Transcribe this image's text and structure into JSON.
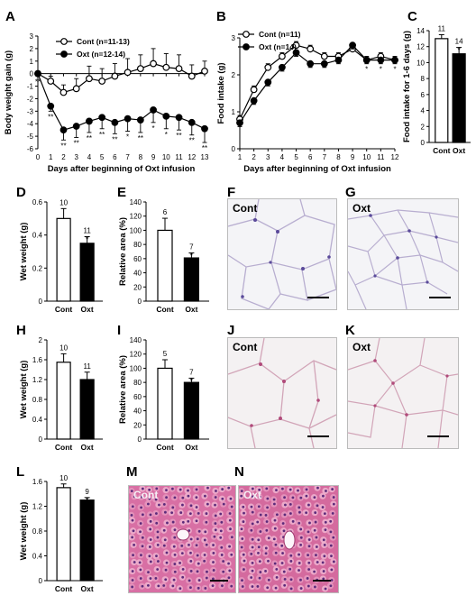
{
  "panels": {
    "A": {
      "label": "A",
      "ylabel": "Body weight gain (g)",
      "xlabel": "Days after beginning of Oxt infusion",
      "legend": [
        "Cont (n=11-13)",
        "Oxt (n=12-14)"
      ]
    },
    "B": {
      "label": "B",
      "ylabel": "Food intake (g)",
      "xlabel": "Days after beginning of Oxt infusion",
      "legend": [
        "Cont (n=11)",
        "Oxt (n=14)"
      ]
    },
    "C": {
      "label": "C",
      "ylabel": "Food intake for 1-6 days (g)"
    },
    "D": {
      "label": "D",
      "ylabel": "Wet weight (g)"
    },
    "E": {
      "label": "E",
      "ylabel": "Relative area (%)"
    },
    "F": {
      "label": "F",
      "caption": "Cont"
    },
    "G": {
      "label": "G",
      "caption": "Oxt"
    },
    "H": {
      "label": "H",
      "ylabel": "Wet weight (g)"
    },
    "I": {
      "label": "I",
      "ylabel": "Relative area (%)"
    },
    "J": {
      "label": "J",
      "caption": "Cont"
    },
    "K": {
      "label": "K",
      "caption": "Oxt"
    },
    "L": {
      "label": "L",
      "ylabel": "Wet weight (g)"
    },
    "M": {
      "label": "M",
      "caption": "Cont"
    },
    "N": {
      "label": "N",
      "caption": "Oxt"
    }
  },
  "chart_data": [
    {
      "id": "A",
      "type": "line",
      "x": [
        0,
        1,
        2,
        3,
        4,
        5,
        6,
        7,
        8,
        9,
        10,
        11,
        12,
        13
      ],
      "xlabel": "Days after beginning of Oxt infusion",
      "ylabel": "Body weight gain (g)",
      "ylim": [
        -6,
        3
      ],
      "yticks": [
        -6,
        -5,
        -4,
        -3,
        -2,
        -1,
        0,
        1,
        2,
        3
      ],
      "series": [
        {
          "name": "Cont (n=11-13)",
          "marker": "open",
          "values": [
            0,
            -0.6,
            -1.5,
            -1.2,
            -0.4,
            -0.6,
            -0.2,
            0.1,
            0.4,
            0.8,
            0.5,
            0.4,
            -0.2,
            0.2
          ],
          "err": [
            0.2,
            0.4,
            0.6,
            0.8,
            1.0,
            1.0,
            1.0,
            1.1,
            1.1,
            1.2,
            1.1,
            1.1,
            0.9,
            0.8
          ]
        },
        {
          "name": "Oxt (n=12-14)",
          "marker": "filled",
          "values": [
            0,
            -2.6,
            -4.5,
            -4.2,
            -3.8,
            -3.5,
            -3.9,
            -3.6,
            -3.7,
            -2.9,
            -3.4,
            -3.5,
            -3.9,
            -4.4
          ],
          "err": [
            0.2,
            0.4,
            0.8,
            0.9,
            0.9,
            0.9,
            0.9,
            1.0,
            1.0,
            1.0,
            1.0,
            1.0,
            1.0,
            1.1
          ]
        }
      ],
      "annotations": [
        "**",
        "**",
        "**",
        "**",
        "**",
        "**",
        "**",
        "*",
        "**",
        "*",
        "*",
        "**",
        "**",
        "**"
      ]
    },
    {
      "id": "B",
      "type": "line",
      "x": [
        1,
        2,
        3,
        4,
        5,
        6,
        7,
        8,
        9,
        10,
        11,
        12
      ],
      "xlabel": "Days after beginning of Oxt infusion",
      "ylabel": "Food intake (g)",
      "ylim": [
        0,
        3
      ],
      "yticks": [
        0,
        1,
        2,
        3
      ],
      "series": [
        {
          "name": "Cont (n=11)",
          "marker": "open",
          "values": [
            0.8,
            1.6,
            2.2,
            2.5,
            2.8,
            2.7,
            2.5,
            2.5,
            2.7,
            2.4,
            2.5,
            2.4
          ],
          "err": [
            0.1,
            0.1,
            0.1,
            0.1,
            0.1,
            0.1,
            0.1,
            0.1,
            0.1,
            0.1,
            0.1,
            0.1
          ]
        },
        {
          "name": "Oxt (n=14)",
          "marker": "filled",
          "values": [
            0.7,
            1.3,
            1.8,
            2.2,
            2.6,
            2.3,
            2.3,
            2.4,
            2.8,
            2.4,
            2.4,
            2.4
          ],
          "err": [
            0.1,
            0.1,
            0.1,
            0.1,
            0.1,
            0.1,
            0.1,
            0.1,
            0.1,
            0.1,
            0.1,
            0.1
          ]
        }
      ],
      "annotations": [
        "*",
        "*",
        "*"
      ]
    },
    {
      "id": "C",
      "type": "bar",
      "categories": [
        "Cont",
        "Oxt"
      ],
      "values": [
        13.0,
        11.1
      ],
      "err": [
        0.5,
        0.8
      ],
      "n": [
        "11",
        "14"
      ],
      "sig": [
        "",
        "*"
      ],
      "ylabel": "Food intake for 1-6 days (g)",
      "ylim": [
        0,
        14
      ],
      "yticks": [
        0,
        2,
        4,
        6,
        8,
        10,
        12,
        14
      ]
    },
    {
      "id": "D",
      "type": "bar",
      "categories": [
        "Cont",
        "Oxt"
      ],
      "values": [
        0.5,
        0.35
      ],
      "err": [
        0.06,
        0.04
      ],
      "n": [
        "10",
        "11"
      ],
      "sig": [
        "",
        "*"
      ],
      "ylabel": "Wet weight (g)",
      "ylim": [
        0,
        0.6
      ],
      "yticks": [
        0,
        0.2,
        0.4,
        0.6
      ]
    },
    {
      "id": "E",
      "type": "bar",
      "categories": [
        "Cont",
        "Oxt"
      ],
      "values": [
        100,
        61
      ],
      "err": [
        17,
        7
      ],
      "n": [
        "6",
        "7"
      ],
      "sig": [
        "",
        "*"
      ],
      "ylabel": "Relative area (%)",
      "ylim": [
        0,
        140
      ],
      "yticks": [
        0,
        20,
        40,
        60,
        80,
        100,
        120,
        140
      ]
    },
    {
      "id": "H",
      "type": "bar",
      "categories": [
        "Cont",
        "Oxt"
      ],
      "values": [
        1.55,
        1.2
      ],
      "err": [
        0.17,
        0.15
      ],
      "n": [
        "10",
        "11"
      ],
      "sig": [
        "",
        ""
      ],
      "ylabel": "Wet weight (g)",
      "ylim": [
        0,
        2
      ],
      "yticks": [
        0,
        0.4,
        0.8,
        1.2,
        1.6,
        2
      ]
    },
    {
      "id": "I",
      "type": "bar",
      "categories": [
        "Cont",
        "Oxt"
      ],
      "values": [
        100,
        80
      ],
      "err": [
        12,
        6
      ],
      "n": [
        "5",
        "7"
      ],
      "sig": [
        "",
        "*"
      ],
      "ylabel": "Relative area (%)",
      "ylim": [
        0,
        140
      ],
      "yticks": [
        0,
        20,
        40,
        60,
        80,
        100,
        120,
        140
      ]
    },
    {
      "id": "L",
      "type": "bar",
      "categories": [
        "Cont",
        "Oxt"
      ],
      "values": [
        1.5,
        1.3
      ],
      "err": [
        0.06,
        0.04
      ],
      "n": [
        "10",
        "9"
      ],
      "sig": [
        "",
        "*"
      ],
      "ylabel": "Wet weight (g)",
      "ylim": [
        0,
        1.6
      ],
      "yticks": [
        0,
        0.4,
        0.8,
        1.2,
        1.6
      ]
    }
  ]
}
